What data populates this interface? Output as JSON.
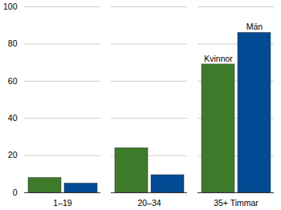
{
  "chart_data": {
    "type": "bar",
    "categories": [
      "1–19",
      "20–34",
      "35+ Timmar"
    ],
    "series": [
      {
        "name": "Kvinnor",
        "color": "#3d7a2a",
        "values": [
          8,
          24,
          69
        ]
      },
      {
        "name": "Män",
        "color": "#004b93",
        "values": [
          5,
          9.5,
          86
        ]
      }
    ],
    "ylim": [
      0,
      100
    ],
    "yticks": [
      0,
      20,
      40,
      60,
      80,
      100
    ],
    "grid": true
  }
}
